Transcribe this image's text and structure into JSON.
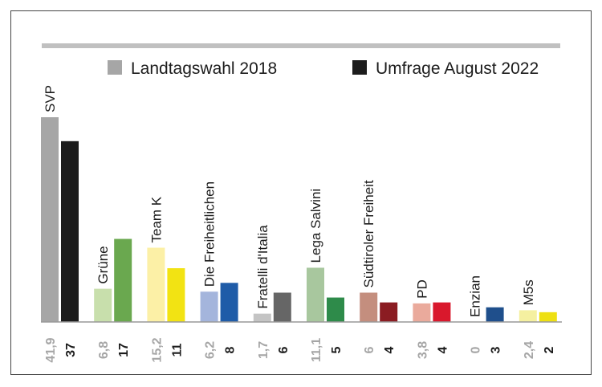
{
  "chart_data": {
    "type": "bar",
    "title": "",
    "xlabel": "",
    "ylabel": "",
    "ylim": [
      0,
      41.9
    ],
    "grid": false,
    "legend": "top-right",
    "categories": [
      "SVP",
      "Grüne",
      "Team K",
      "Die Freiheitlichen",
      "Fratelli d'Italia",
      "Lega Salvini",
      "Südtiroler Freiheit",
      "PD",
      "Enzian",
      "M5s"
    ],
    "series": [
      {
        "name": "Landtagswahl 2018",
        "values": [
          41.9,
          6.8,
          15.2,
          6.2,
          1.7,
          11.1,
          6,
          3.8,
          0,
          2.4
        ],
        "value_labels": [
          "41,9",
          "6,8",
          "15,2",
          "6,2",
          "1,7",
          "11,1",
          "6",
          "3,8",
          "0",
          "2,4"
        ]
      },
      {
        "name": "Umfrage August 2022",
        "values": [
          37,
          17,
          11,
          8,
          6,
          5,
          4,
          4,
          3,
          2
        ],
        "value_labels": [
          "37",
          "17",
          "11",
          "8",
          "6",
          "5",
          "4",
          "4",
          "3",
          "2"
        ]
      }
    ],
    "colors_2018": [
      "#a6a6a6",
      "#c8dfac",
      "#fcf0a6",
      "#a4b5dc",
      "#c4c4c4",
      "#a8c79e",
      "#c48e7e",
      "#eaaa9c",
      "#a4b4c8",
      "#f5f0a0"
    ],
    "colors_2022": [
      "#1c1c1c",
      "#6aa84f",
      "#f2e313",
      "#1f5ca8",
      "#666666",
      "#2e8b4a",
      "#8b1c22",
      "#d9182c",
      "#1f4f8c",
      "#eee012"
    ],
    "legend_colors": [
      "#a6a6a6",
      "#1c1c1c"
    ],
    "label_colors": {
      "value_2018": "#a6a6a6",
      "value_2022": "#1c1c1c",
      "category": "#1c1c1c"
    },
    "rule_color": "#c0c0c0",
    "axis_color": "#999999"
  }
}
